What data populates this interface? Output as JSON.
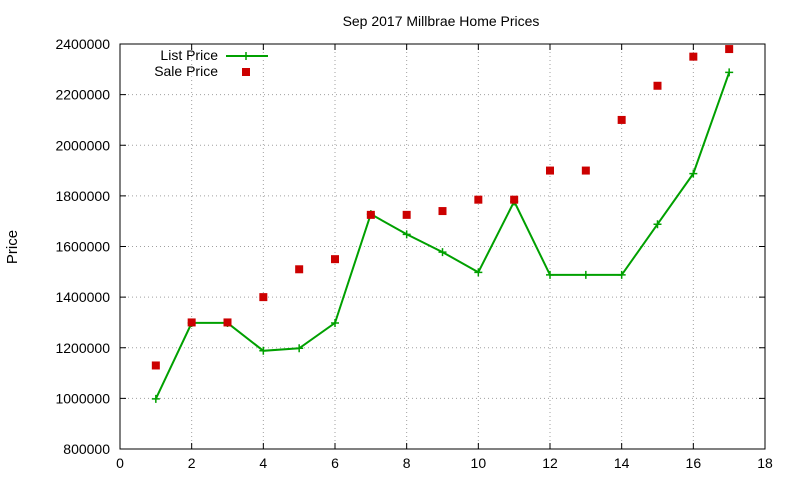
{
  "chart_data": {
    "type": "line",
    "title": "Sep 2017 Millbrae Home Prices",
    "xlabel": "",
    "ylabel": "Price",
    "xlim": [
      0,
      18
    ],
    "ylim": [
      800000,
      2400000
    ],
    "xticks": [
      0,
      2,
      4,
      6,
      8,
      10,
      12,
      14,
      16,
      18
    ],
    "yticks": [
      800000,
      1000000,
      1200000,
      1400000,
      1600000,
      1800000,
      2000000,
      2200000,
      2400000
    ],
    "grid": true,
    "legend_position": "top-left",
    "series": [
      {
        "name": "List Price",
        "style": "line-with-plus-markers",
        "color": "#00a000",
        "x": [
          1,
          2,
          3,
          4,
          5,
          6,
          7,
          8,
          9,
          10,
          11,
          12,
          13,
          14,
          15,
          16,
          17
        ],
        "y": [
          998000,
          1298000,
          1298000,
          1188000,
          1198000,
          1298000,
          1728000,
          1648000,
          1578000,
          1498000,
          1778000,
          1488000,
          1488000,
          1488000,
          1688000,
          1888000,
          2288000
        ]
      },
      {
        "name": "Sale Price",
        "style": "square-markers",
        "color": "#cc0000",
        "x": [
          1,
          2,
          3,
          4,
          5,
          6,
          7,
          8,
          9,
          10,
          11,
          12,
          13,
          14,
          15,
          16,
          17
        ],
        "y": [
          1130000,
          1300000,
          1300000,
          1400000,
          1510000,
          1550000,
          1725000,
          1725000,
          1740000,
          1785000,
          1785000,
          1900000,
          1900000,
          2100000,
          2235000,
          2350000,
          2380000
        ]
      }
    ]
  }
}
